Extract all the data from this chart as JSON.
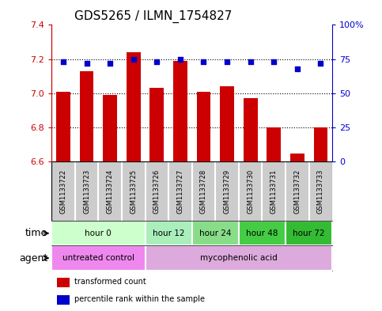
{
  "title": "GDS5265 / ILMN_1754827",
  "samples": [
    "GSM1133722",
    "GSM1133723",
    "GSM1133724",
    "GSM1133725",
    "GSM1133726",
    "GSM1133727",
    "GSM1133728",
    "GSM1133729",
    "GSM1133730",
    "GSM1133731",
    "GSM1133732",
    "GSM1133733"
  ],
  "bar_values": [
    7.01,
    7.13,
    6.99,
    7.24,
    7.03,
    7.19,
    7.01,
    7.04,
    6.97,
    6.8,
    6.65,
    6.8
  ],
  "scatter_values": [
    73,
    72,
    72,
    75,
    73,
    75,
    73,
    73,
    73,
    73,
    68,
    72
  ],
  "ylim_left": [
    6.6,
    7.4
  ],
  "ylim_right": [
    0,
    100
  ],
  "yticks_left": [
    6.6,
    6.8,
    7.0,
    7.2,
    7.4
  ],
  "yticks_right": [
    0,
    25,
    50,
    75,
    100
  ],
  "ytick_labels_right": [
    "0",
    "25",
    "50",
    "75",
    "100%"
  ],
  "bar_color": "#cc0000",
  "scatter_color": "#0000cc",
  "bar_bottom": 6.6,
  "time_groups": [
    {
      "label": "hour 0",
      "start": 0,
      "end": 4,
      "color": "#ccffcc"
    },
    {
      "label": "hour 12",
      "start": 4,
      "end": 6,
      "color": "#aaeebb"
    },
    {
      "label": "hour 24",
      "start": 6,
      "end": 8,
      "color": "#88dd88"
    },
    {
      "label": "hour 48",
      "start": 8,
      "end": 10,
      "color": "#44cc44"
    },
    {
      "label": "hour 72",
      "start": 10,
      "end": 12,
      "color": "#33bb33"
    }
  ],
  "agent_groups": [
    {
      "label": "untreated control",
      "start": 0,
      "end": 4,
      "color": "#ee88ee"
    },
    {
      "label": "mycophenolic acid",
      "start": 4,
      "end": 12,
      "color": "#ddaadd"
    }
  ],
  "legend_bar_label": "transformed count",
  "legend_scatter_label": "percentile rank within the sample",
  "label_time": "time",
  "label_agent": "agent",
  "left_tick_color": "#cc0000",
  "right_tick_color": "#0000cc",
  "title_fontsize": 11,
  "tick_fontsize": 8,
  "bar_width": 0.6,
  "sample_bg_color": "#cccccc",
  "sample_fontsize": 6,
  "row_label_fontsize": 9,
  "legend_fontsize": 7
}
